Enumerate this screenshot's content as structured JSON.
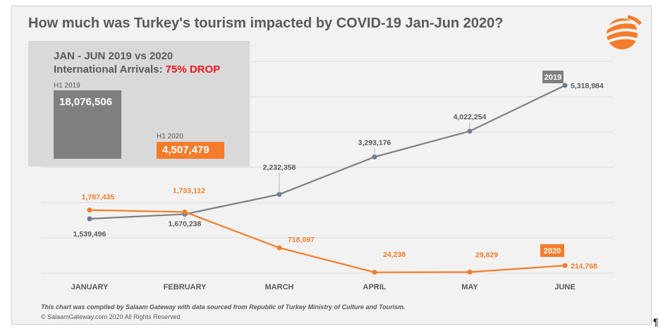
{
  "title": "How much was Turkey's tourism impacted by COVID-19 Jan-Jun 2020?",
  "summary": {
    "line1": "JAN - JUN 2019 vs 2020",
    "line2_prefix": "International Arrivals: ",
    "line2_drop": "75% DROP",
    "h1_2019_label": "H1 2019",
    "h1_2019_value": "18,076,506",
    "h1_2020_label": "H1 2020",
    "h1_2020_value": "4,507,479"
  },
  "footnote": "This chart was compiled by Salaam Gateway with data sourced from Republic of Turkey Ministry of Culture and Tourism.",
  "copyright": "© SalaamGateway.com 2020 All Rights Reserved",
  "pilcrow": "¶",
  "colors": {
    "series_2019": "#7f7f7f",
    "series_2020": "#f47c2a",
    "drop": "#e8161b",
    "background": "#f2f2f2"
  },
  "icons": {
    "logo": "salaam-gateway-logo-icon"
  },
  "chart_data": {
    "type": "line",
    "categories": [
      "JANUARY",
      "FEBRUARY",
      "MARCH",
      "APRIL",
      "MAY",
      "JUNE"
    ],
    "series": [
      {
        "name": "2019",
        "values": [
          1539496,
          1670238,
          2232358,
          3293176,
          4022254,
          5318984
        ],
        "labels": [
          "1,539,496",
          "1,670,238",
          "2,232,358",
          "3,293,176",
          "4,022,254",
          "5,318,984"
        ]
      },
      {
        "name": "2020",
        "values": [
          1787435,
          1733112,
          718097,
          24238,
          29829,
          214768
        ],
        "labels": [
          "1,787,435",
          "1,733,112",
          "718,097",
          "24,238",
          "29,829",
          "214,768"
        ]
      }
    ],
    "ylim": [
      0,
      6000000
    ],
    "grid": true,
    "legend": "tags at end of lines"
  }
}
